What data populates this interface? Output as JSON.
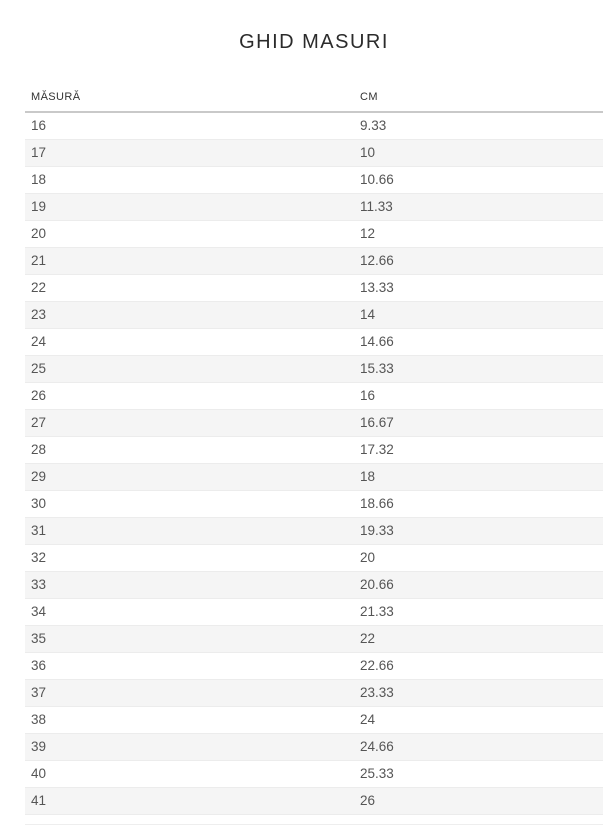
{
  "page": {
    "title": "GHID MASURI",
    "background_color": "#ffffff",
    "title_color": "#2b2b2b"
  },
  "size_guide_table": {
    "columns": [
      {
        "key": "size",
        "label": "MĂSURĂ"
      },
      {
        "key": "cm",
        "label": "CM"
      }
    ],
    "rows": [
      {
        "size": "16",
        "cm": "9.33"
      },
      {
        "size": "17",
        "cm": "10"
      },
      {
        "size": "18",
        "cm": "10.66"
      },
      {
        "size": "19",
        "cm": "11.33"
      },
      {
        "size": "20",
        "cm": "12"
      },
      {
        "size": "21",
        "cm": "12.66"
      },
      {
        "size": "22",
        "cm": "13.33"
      },
      {
        "size": "23",
        "cm": "14"
      },
      {
        "size": "24",
        "cm": "14.66"
      },
      {
        "size": "25",
        "cm": "15.33"
      },
      {
        "size": "26",
        "cm": "16"
      },
      {
        "size": "27",
        "cm": "16.67"
      },
      {
        "size": "28",
        "cm": "17.32"
      },
      {
        "size": "29",
        "cm": "18"
      },
      {
        "size": "30",
        "cm": "18.66"
      },
      {
        "size": "31",
        "cm": "19.33"
      },
      {
        "size": "32",
        "cm": "20"
      },
      {
        "size": "33",
        "cm": "20.66"
      },
      {
        "size": "34",
        "cm": "21.33"
      },
      {
        "size": "35",
        "cm": "22"
      },
      {
        "size": "36",
        "cm": "22.66"
      },
      {
        "size": "37",
        "cm": "23.33"
      },
      {
        "size": "38",
        "cm": "24"
      },
      {
        "size": "39",
        "cm": "24.66"
      },
      {
        "size": "40",
        "cm": "25.33"
      },
      {
        "size": "41",
        "cm": "26"
      }
    ],
    "colors": {
      "stripe_bg": "#f5f5f5",
      "row_border": "#ececec",
      "header_border": "#c9c9c9",
      "header_text": "#333333",
      "cell_text": "#555555"
    }
  }
}
